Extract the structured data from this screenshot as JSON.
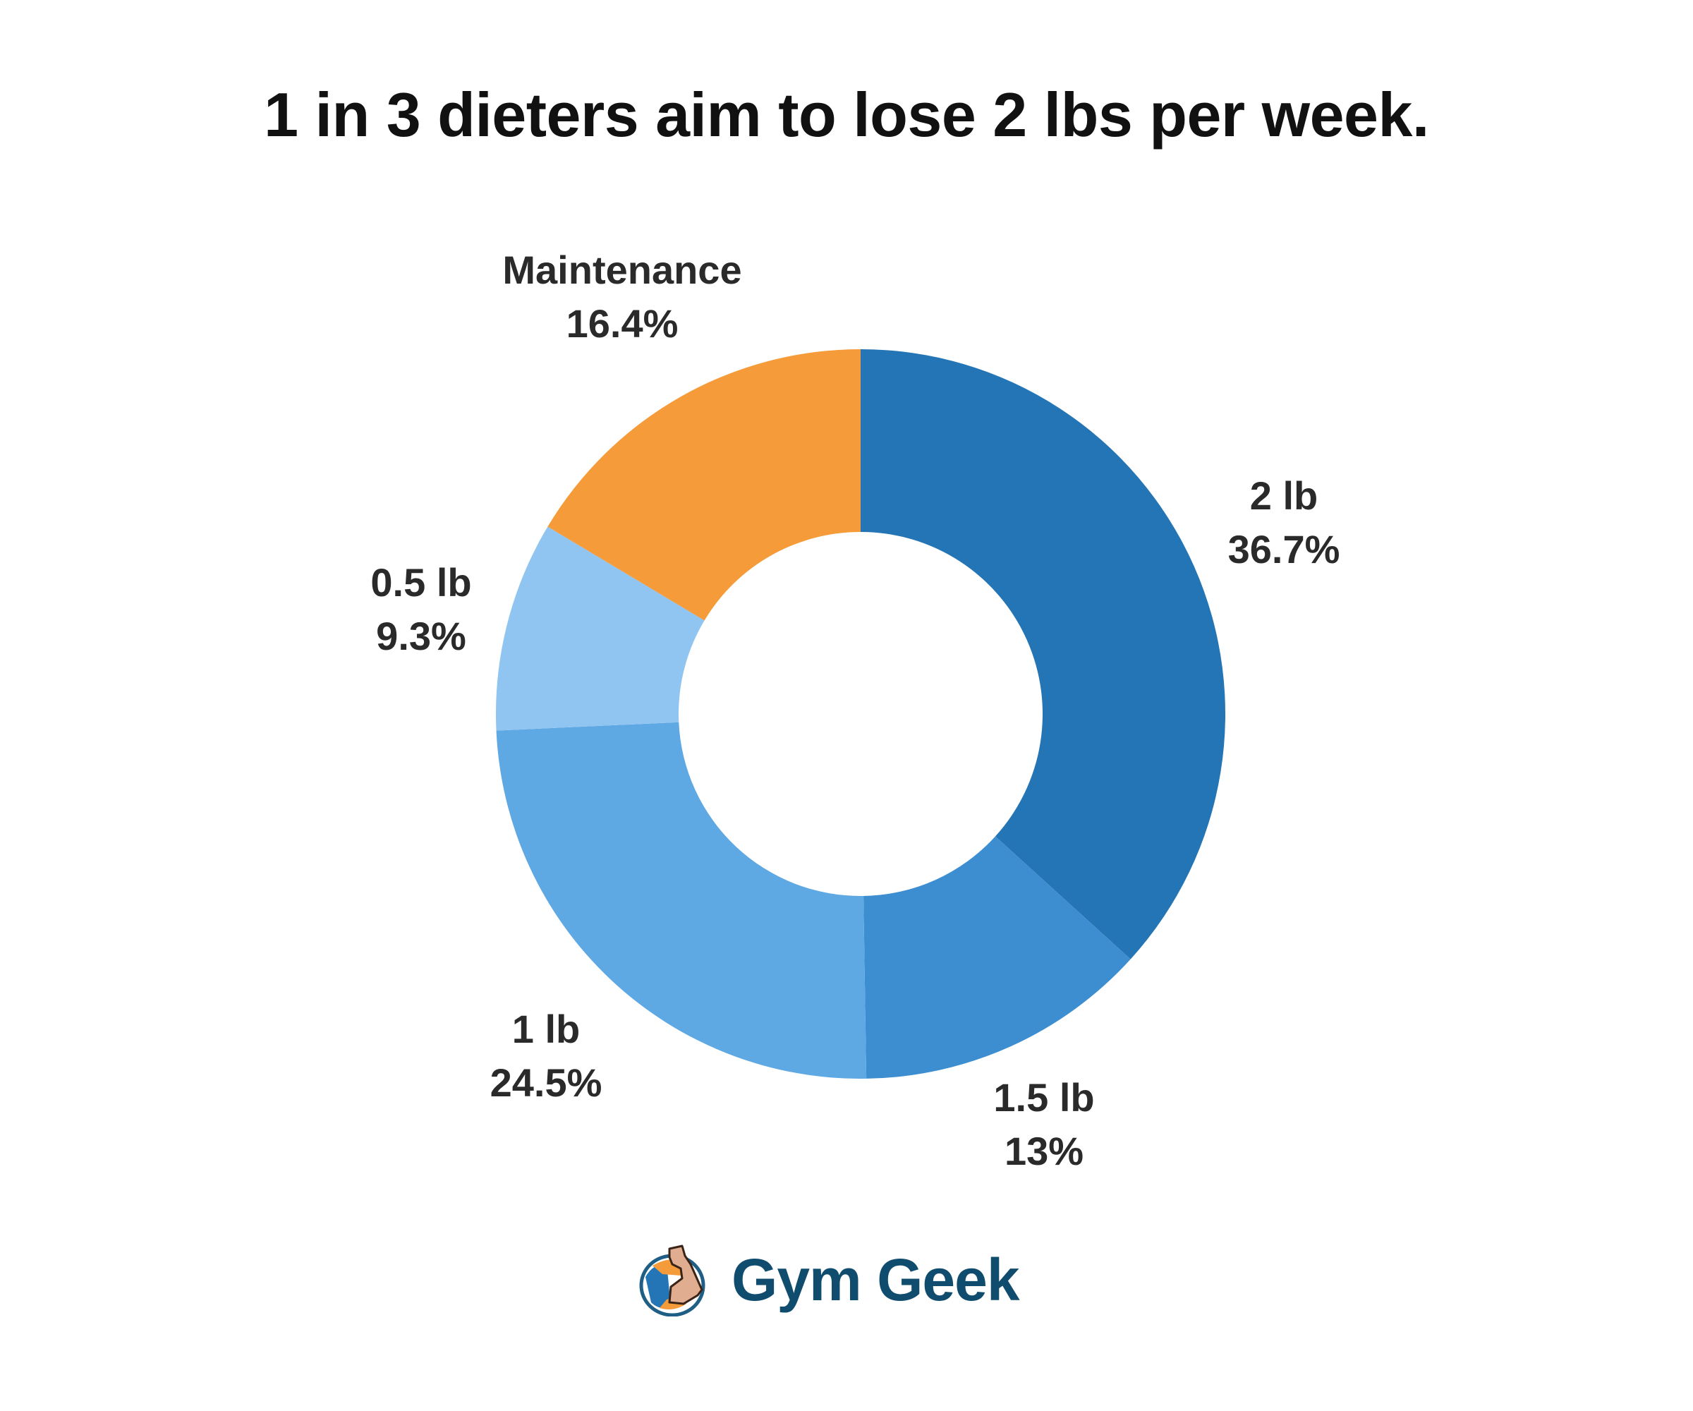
{
  "chart_data": {
    "type": "pie",
    "donut": true,
    "title": "1 in 3 dieters aim to lose 2 lbs per week.",
    "start": "top",
    "direction": "clockwise",
    "slices": [
      {
        "label": "2 lb",
        "value": 36.7,
        "display": "36.7%",
        "color": "#2475b6"
      },
      {
        "label": "1.5 lb",
        "value": 13,
        "display": "13%",
        "color": "#3c8ed1"
      },
      {
        "label": "1 lb",
        "value": 24.5,
        "display": "24.5%",
        "color": "#5ea8e3"
      },
      {
        "label": "0.5 lb",
        "value": 9.3,
        "display": "9.3%",
        "color": "#91c5f1"
      },
      {
        "label": "Maintenance",
        "value": 16.4,
        "display": "16.4%",
        "color": "#f59b39"
      }
    ]
  },
  "brand": {
    "name": "Gym Geek",
    "color": "#0f4c6e"
  }
}
